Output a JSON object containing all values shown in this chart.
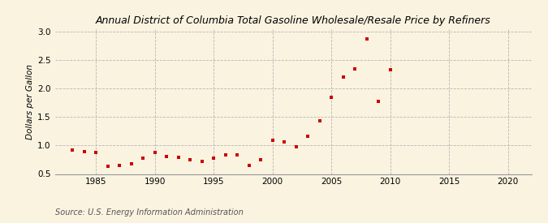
{
  "title": "Annual District of Columbia Total Gasoline Wholesale/Resale Price by Refiners",
  "ylabel": "Dollars per Gallon",
  "source": "Source: U.S. Energy Information Administration",
  "background_color": "#faf3e0",
  "marker_color": "#cc0000",
  "xlim": [
    1981.5,
    2022
  ],
  "ylim": [
    0.5,
    3.05
  ],
  "xticks": [
    1985,
    1990,
    1995,
    2000,
    2005,
    2010,
    2015,
    2020
  ],
  "yticks": [
    0.5,
    1.0,
    1.5,
    2.0,
    2.5,
    3.0
  ],
  "years": [
    1983,
    1984,
    1985,
    1986,
    1987,
    1988,
    1989,
    1990,
    1991,
    1992,
    1993,
    1994,
    1995,
    1996,
    1997,
    1998,
    1999,
    2000,
    2001,
    2002,
    2003,
    2004,
    2005,
    2006,
    2007,
    2008,
    2009,
    2010
  ],
  "values": [
    0.92,
    0.89,
    0.88,
    0.63,
    0.65,
    0.68,
    0.78,
    0.88,
    0.8,
    0.79,
    0.75,
    0.72,
    0.78,
    0.84,
    0.83,
    0.65,
    0.75,
    1.09,
    1.07,
    0.98,
    1.16,
    1.44,
    1.85,
    2.21,
    2.35,
    2.87,
    1.77,
    2.34
  ],
  "title_fontsize": 9,
  "ylabel_fontsize": 7.5,
  "tick_fontsize": 7.5,
  "source_fontsize": 7
}
